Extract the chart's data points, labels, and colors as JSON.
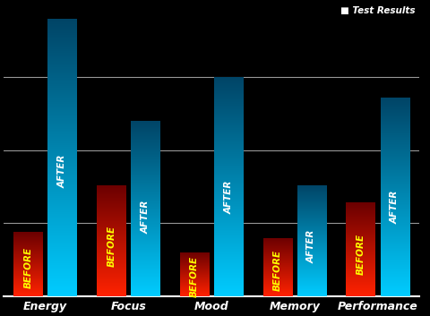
{
  "categories": [
    "Energy",
    "Focus",
    "Mood",
    "Memory",
    "Performance"
  ],
  "before_values": [
    2.2,
    3.8,
    1.5,
    2.0,
    3.2
  ],
  "after_values": [
    9.5,
    6.0,
    7.5,
    3.8,
    6.8
  ],
  "background_color": "#000000",
  "plot_bg_color": "#000000",
  "grid_color": "#ffffff",
  "text_color_before": "#ffff00",
  "text_color_after": "#ffffff",
  "label_color": "#ffffff",
  "legend_text": "Test Results",
  "ylim": [
    0,
    10
  ],
  "bar_width": 0.35,
  "before_color_bottom": "#ff2200",
  "before_color_top": "#6b0000",
  "after_color_bottom": "#00ccff",
  "after_color_top": "#004466",
  "grid_lines": [
    2.5,
    5.0,
    7.5
  ]
}
